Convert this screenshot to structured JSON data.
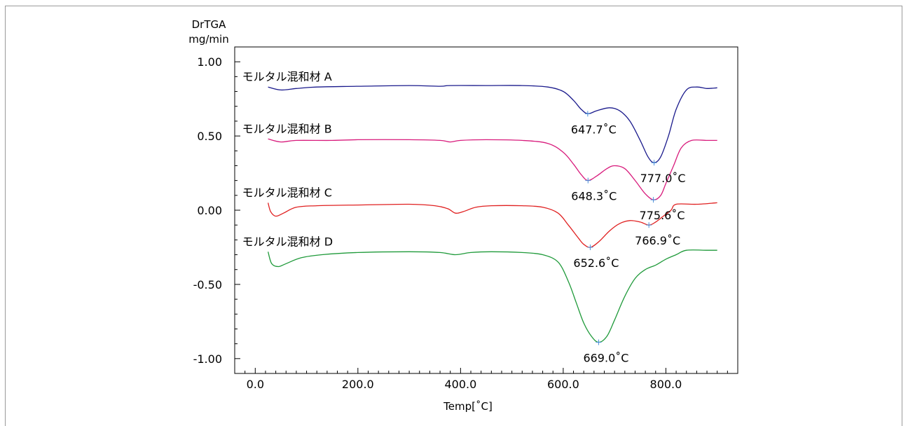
{
  "chart_data": {
    "type": "line",
    "ylabel_line1": "DrTGA",
    "ylabel_line2": "mg/min",
    "xlabel": "Temp[˚C]",
    "xlim": [
      -40,
      940
    ],
    "ylim": [
      -1.1,
      1.1
    ],
    "xticks": [
      {
        "value": 0,
        "label": "0.0"
      },
      {
        "value": 200,
        "label": "200.0"
      },
      {
        "value": 400,
        "label": "400.0"
      },
      {
        "value": 600,
        "label": "600.0"
      },
      {
        "value": 800,
        "label": "800.0"
      }
    ],
    "yticks": [
      {
        "value": 1.0,
        "label": "1.00"
      },
      {
        "value": 0.5,
        "label": "0.50"
      },
      {
        "value": 0.0,
        "label": "0.00"
      },
      {
        "value": -0.5,
        "label": "-0.50"
      },
      {
        "value": -1.0,
        "label": "-1.00"
      }
    ],
    "series": [
      {
        "name": "モルタル混和材 A",
        "color": "#1a1a8c",
        "points": [
          [
            25,
            0.83
          ],
          [
            50,
            0.81
          ],
          [
            80,
            0.82
          ],
          [
            120,
            0.83
          ],
          [
            200,
            0.835
          ],
          [
            300,
            0.84
          ],
          [
            360,
            0.835
          ],
          [
            380,
            0.84
          ],
          [
            450,
            0.84
          ],
          [
            520,
            0.84
          ],
          [
            570,
            0.83
          ],
          [
            600,
            0.8
          ],
          [
            620,
            0.74
          ],
          [
            635,
            0.68
          ],
          [
            648,
            0.65
          ],
          [
            665,
            0.67
          ],
          [
            690,
            0.69
          ],
          [
            710,
            0.67
          ],
          [
            730,
            0.6
          ],
          [
            750,
            0.47
          ],
          [
            765,
            0.36
          ],
          [
            777,
            0.32
          ],
          [
            790,
            0.36
          ],
          [
            805,
            0.5
          ],
          [
            820,
            0.68
          ],
          [
            840,
            0.81
          ],
          [
            860,
            0.83
          ],
          [
            880,
            0.82
          ],
          [
            900,
            0.825
          ]
        ],
        "peaks": [
          {
            "x": 647.7,
            "y": 0.65,
            "label": "647.7˚C",
            "dx": -24,
            "dy": 28
          },
          {
            "x": 777.0,
            "y": 0.32,
            "label": "777.0˚C",
            "dx": -20,
            "dy": 28
          }
        ]
      },
      {
        "name": "モルタル混和材 B",
        "color": "#d81b7c",
        "points": [
          [
            25,
            0.48
          ],
          [
            50,
            0.46
          ],
          [
            80,
            0.47
          ],
          [
            150,
            0.47
          ],
          [
            200,
            0.475
          ],
          [
            300,
            0.475
          ],
          [
            360,
            0.47
          ],
          [
            380,
            0.46
          ],
          [
            400,
            0.47
          ],
          [
            450,
            0.475
          ],
          [
            520,
            0.47
          ],
          [
            570,
            0.45
          ],
          [
            600,
            0.39
          ],
          [
            620,
            0.31
          ],
          [
            635,
            0.24
          ],
          [
            648,
            0.2
          ],
          [
            665,
            0.23
          ],
          [
            685,
            0.28
          ],
          [
            700,
            0.3
          ],
          [
            720,
            0.28
          ],
          [
            740,
            0.2
          ],
          [
            760,
            0.11
          ],
          [
            776,
            0.07
          ],
          [
            790,
            0.1
          ],
          [
            800,
            0.18
          ],
          [
            815,
            0.3
          ],
          [
            830,
            0.42
          ],
          [
            850,
            0.47
          ],
          [
            880,
            0.47
          ],
          [
            900,
            0.47
          ]
        ],
        "peaks": [
          {
            "x": 648.3,
            "y": 0.2,
            "label": "648.3˚C",
            "dx": -24,
            "dy": 28
          },
          {
            "x": 775.6,
            "y": 0.07,
            "label": "775.6˚C",
            "dx": -20,
            "dy": 28
          }
        ]
      },
      {
        "name": "モルタル混和材 C",
        "color": "#e02020",
        "points": [
          [
            25,
            0.05
          ],
          [
            30,
            -0.01
          ],
          [
            40,
            -0.04
          ],
          [
            55,
            -0.02
          ],
          [
            80,
            0.02
          ],
          [
            120,
            0.03
          ],
          [
            200,
            0.035
          ],
          [
            300,
            0.04
          ],
          [
            350,
            0.03
          ],
          [
            375,
            0.01
          ],
          [
            390,
            -0.02
          ],
          [
            405,
            -0.01
          ],
          [
            430,
            0.02
          ],
          [
            460,
            0.03
          ],
          [
            520,
            0.03
          ],
          [
            560,
            0.02
          ],
          [
            590,
            -0.02
          ],
          [
            610,
            -0.1
          ],
          [
            630,
            -0.19
          ],
          [
            640,
            -0.23
          ],
          [
            653,
            -0.25
          ],
          [
            670,
            -0.21
          ],
          [
            690,
            -0.14
          ],
          [
            710,
            -0.09
          ],
          [
            730,
            -0.07
          ],
          [
            750,
            -0.08
          ],
          [
            767,
            -0.1
          ],
          [
            780,
            -0.08
          ],
          [
            795,
            -0.04
          ],
          [
            810,
            0.0
          ],
          [
            820,
            0.04
          ],
          [
            860,
            0.04
          ],
          [
            900,
            0.05
          ]
        ],
        "peaks": [
          {
            "x": 652.6,
            "y": -0.25,
            "label": "652.6˚C",
            "dx": -24,
            "dy": 28
          },
          {
            "x": 766.9,
            "y": -0.1,
            "label": "766.9˚C",
            "dx": -20,
            "dy": 28
          }
        ]
      },
      {
        "name": "モルタル混和材 D",
        "color": "#1f9a3a",
        "points": [
          [
            25,
            -0.28
          ],
          [
            32,
            -0.36
          ],
          [
            45,
            -0.38
          ],
          [
            60,
            -0.36
          ],
          [
            90,
            -0.32
          ],
          [
            130,
            -0.3
          ],
          [
            200,
            -0.285
          ],
          [
            300,
            -0.28
          ],
          [
            360,
            -0.285
          ],
          [
            390,
            -0.3
          ],
          [
            420,
            -0.285
          ],
          [
            460,
            -0.28
          ],
          [
            520,
            -0.285
          ],
          [
            560,
            -0.3
          ],
          [
            590,
            -0.35
          ],
          [
            610,
            -0.48
          ],
          [
            625,
            -0.62
          ],
          [
            640,
            -0.76
          ],
          [
            655,
            -0.85
          ],
          [
            669,
            -0.89
          ],
          [
            685,
            -0.85
          ],
          [
            700,
            -0.74
          ],
          [
            720,
            -0.58
          ],
          [
            740,
            -0.46
          ],
          [
            760,
            -0.4
          ],
          [
            780,
            -0.37
          ],
          [
            800,
            -0.33
          ],
          [
            820,
            -0.3
          ],
          [
            840,
            -0.27
          ],
          [
            880,
            -0.27
          ],
          [
            900,
            -0.27
          ]
        ],
        "peaks": [
          {
            "x": 669.0,
            "y": -0.89,
            "label": "669.0˚C",
            "dx": -22,
            "dy": 28
          }
        ]
      }
    ]
  }
}
